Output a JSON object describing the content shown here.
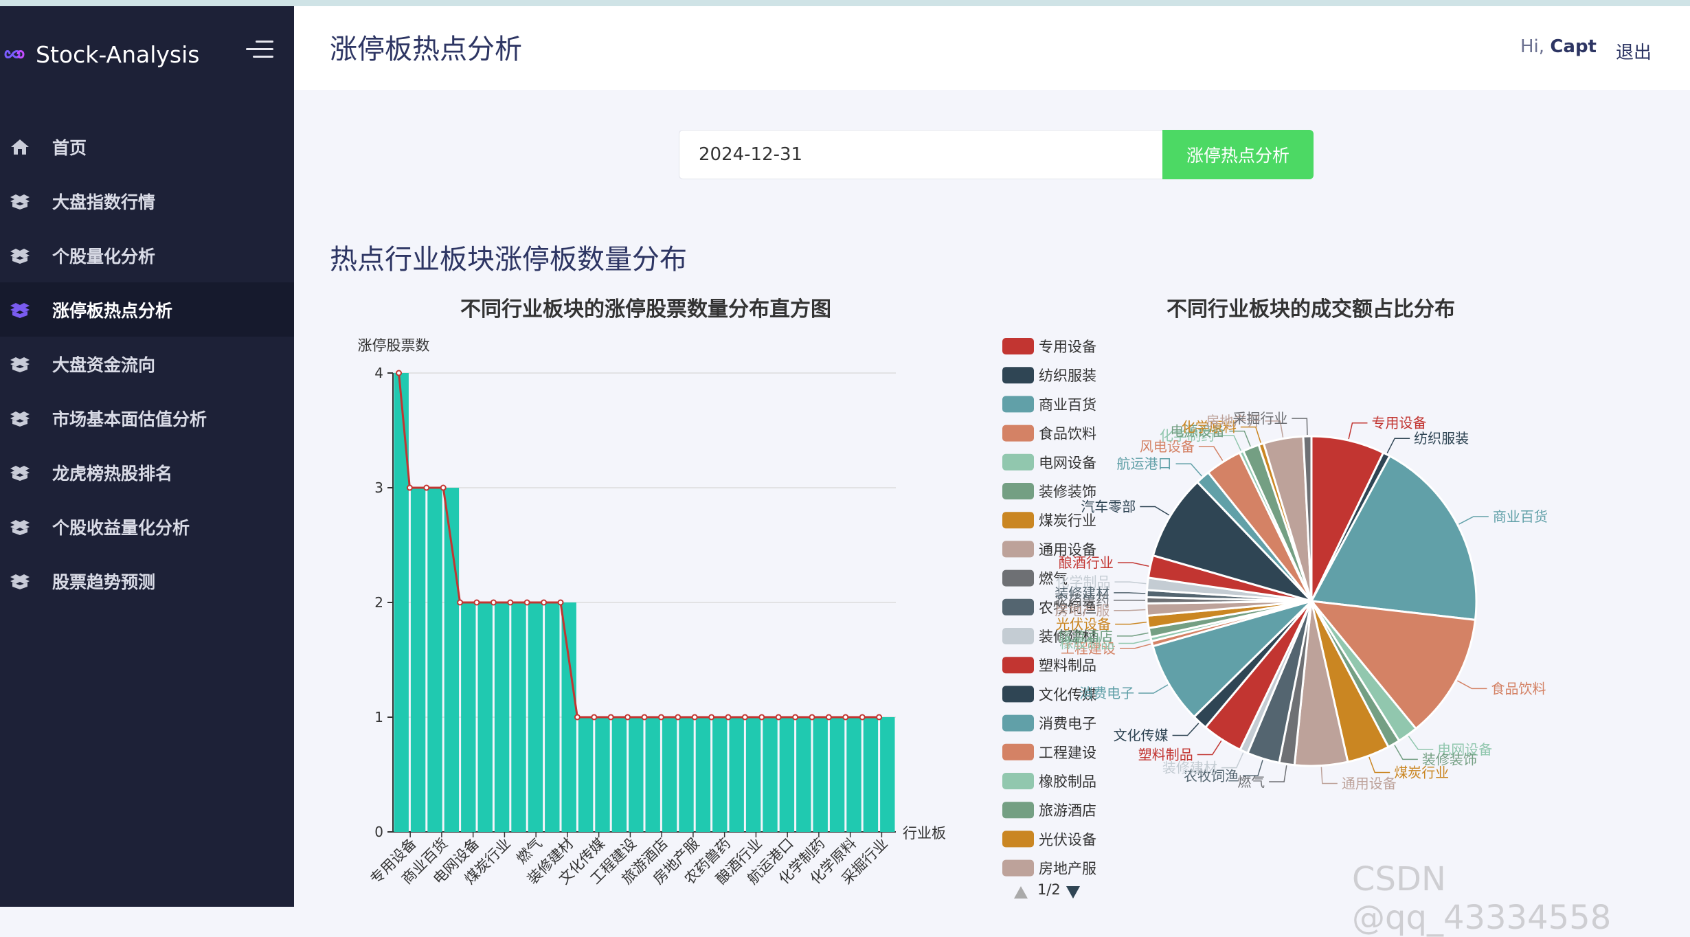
{
  "app": {
    "name": "Stock-Analysis"
  },
  "header": {
    "title": "涨停板热点分析",
    "greeting": "Hi,",
    "user": "Capt",
    "logout": "退出"
  },
  "nav": [
    {
      "label": "首页",
      "icon": "home-icon"
    },
    {
      "label": "大盘指数行情",
      "icon": "box-icon"
    },
    {
      "label": "个股量化分析",
      "icon": "box-icon"
    },
    {
      "label": "涨停板热点分析",
      "icon": "box-icon",
      "active": true
    },
    {
      "label": "大盘资金流向",
      "icon": "box-icon"
    },
    {
      "label": "市场基本面估值分析",
      "icon": "box-icon"
    },
    {
      "label": "龙虎榜热股排名",
      "icon": "box-icon"
    },
    {
      "label": "个股收益量化分析",
      "icon": "box-icon"
    },
    {
      "label": "股票趋势预测",
      "icon": "box-icon"
    }
  ],
  "search": {
    "date_value": "2024-12-31",
    "button_label": "涨停热点分析"
  },
  "section": {
    "title": "热点行业板块涨停板数量分布"
  },
  "watermark": "CSDN @qq_43334558",
  "colors": {
    "bar": "#20c9b0",
    "line": "#c23531",
    "button": "#4cd964",
    "sidebar": "#1d2137"
  },
  "chart_data": [
    {
      "type": "bar",
      "title": "不同行业板块的涨停股票数量分布直方图",
      "ylabel": "涨停股票数",
      "xlabel": "行业板",
      "ylim": [
        0,
        4
      ],
      "yticks": [
        0,
        1,
        2,
        3,
        4
      ],
      "categories": [
        "专用设备",
        "商业百货",
        "纺织服装",
        "电网设备",
        "装修装饰",
        "煤炭行业",
        "汽车零部",
        "燃气",
        "通用设备",
        "装修建材",
        "化学制品",
        "文化传媒",
        "塑料制品",
        "工程建设",
        "橡胶制品",
        "旅游酒店",
        "光伏设备",
        "房地产服",
        "农牧饲渔",
        "农药兽药",
        "消费电子",
        "酿酒行业",
        "电源设备",
        "航运港口",
        "风电设备",
        "化学制药",
        "化学原料",
        "房地产开",
        "采掘行业",
        "食品饮料"
      ],
      "tick_labels": [
        "专用设备",
        "商业百货",
        "电网设备",
        "煤炭行业",
        "燃气",
        "装修建材",
        "文化传媒",
        "工程建设",
        "旅游酒店",
        "房地产服",
        "农药兽药",
        "酿酒行业",
        "航运港口",
        "化学制药",
        "化学原料",
        "采掘行业"
      ],
      "series": [
        {
          "type": "bar",
          "values": [
            4,
            3,
            3,
            3,
            2,
            2,
            2,
            2,
            2,
            2,
            2,
            1,
            1,
            1,
            1,
            1,
            1,
            1,
            1,
            1,
            1,
            1,
            1,
            1,
            1,
            1,
            1,
            1,
            1,
            1
          ]
        },
        {
          "type": "line",
          "values": [
            4,
            3,
            3,
            3,
            2,
            2,
            2,
            2,
            2,
            2,
            2,
            1,
            1,
            1,
            1,
            1,
            1,
            1,
            1,
            1,
            1,
            1,
            1,
            1,
            1,
            1,
            1,
            1,
            1,
            1
          ]
        }
      ]
    },
    {
      "type": "pie",
      "title": "不同行业板块的成交额占比分布",
      "legend_page": "1/2",
      "legend": [
        {
          "name": "专用设备",
          "color": "#c23531"
        },
        {
          "name": "纺织服装",
          "color": "#2f4554"
        },
        {
          "name": "商业百货",
          "color": "#61a0a8"
        },
        {
          "name": "食品饮料",
          "color": "#d48265"
        },
        {
          "name": "电网设备",
          "color": "#91c7ae"
        },
        {
          "name": "装修装饰",
          "color": "#749f83"
        },
        {
          "name": "煤炭行业",
          "color": "#ca8622"
        },
        {
          "name": "通用设备",
          "color": "#bda29a"
        },
        {
          "name": "燃气",
          "color": "#6e7074"
        },
        {
          "name": "农牧饲渔",
          "color": "#546570"
        },
        {
          "name": "装修建材",
          "color": "#c4ccd3"
        },
        {
          "name": "塑料制品",
          "color": "#c23531"
        },
        {
          "name": "文化传媒",
          "color": "#2f4554"
        },
        {
          "name": "消费电子",
          "color": "#61a0a8"
        },
        {
          "name": "工程建设",
          "color": "#d48265"
        },
        {
          "name": "橡胶制品",
          "color": "#91c7ae"
        },
        {
          "name": "旅游酒店",
          "color": "#749f83"
        },
        {
          "name": "光伏设备",
          "color": "#ca8622"
        },
        {
          "name": "房地产服",
          "color": "#bda29a"
        }
      ],
      "slices": [
        {
          "name": "专用设备",
          "color": "#c23531",
          "value": 7.2
        },
        {
          "name": "纺织服装",
          "color": "#2f4554",
          "value": 0.7
        },
        {
          "name": "商业百货",
          "color": "#61a0a8",
          "value": 19.0
        },
        {
          "name": "食品饮料",
          "color": "#d48265",
          "value": 12.3
        },
        {
          "name": "电网设备",
          "color": "#91c7ae",
          "value": 2.0
        },
        {
          "name": "装修装饰",
          "color": "#749f83",
          "value": 1.2
        },
        {
          "name": "煤炭行业",
          "color": "#ca8622",
          "value": 4.2
        },
        {
          "name": "通用设备",
          "color": "#bda29a",
          "value": 5.2
        },
        {
          "name": "燃气",
          "color": "#6e7074",
          "value": 1.5
        },
        {
          "name": "农牧饲渔",
          "color": "#546570",
          "value": 3.2
        },
        {
          "name": "装修建材",
          "color": "#c4ccd3",
          "value": 0.8
        },
        {
          "name": "塑料制品",
          "color": "#c23531",
          "value": 4.0
        },
        {
          "name": "文化传媒",
          "color": "#2f4554",
          "value": 1.5
        },
        {
          "name": "消费电子",
          "color": "#61a0a8",
          "value": 8.0
        },
        {
          "name": "工程建设",
          "color": "#d48265",
          "value": 0.5
        },
        {
          "name": "橡胶制品",
          "color": "#91c7ae",
          "value": 0.4
        },
        {
          "name": "旅游酒店",
          "color": "#749f83",
          "value": 0.9
        },
        {
          "name": "光伏设备",
          "color": "#ca8622",
          "value": 1.2
        },
        {
          "name": "房地产服",
          "color": "#bda29a",
          "value": 1.2
        },
        {
          "name": "农药兽药",
          "color": "#6e7074",
          "value": 0.6
        },
        {
          "name": "装修建材",
          "color": "#546570",
          "value": 0.7
        },
        {
          "name": "化学制品",
          "color": "#c4ccd3",
          "value": 1.2
        },
        {
          "name": "酿酒行业",
          "color": "#c23531",
          "value": 2.2
        },
        {
          "name": "汽车零部",
          "color": "#2f4554",
          "value": 8.4
        },
        {
          "name": "航运港口",
          "color": "#61a0a8",
          "value": 1.4
        },
        {
          "name": "风电设备",
          "color": "#d48265",
          "value": 3.6
        },
        {
          "name": "化学制药",
          "color": "#91c7ae",
          "value": 0.4
        },
        {
          "name": "电源设备",
          "color": "#749f83",
          "value": 1.6
        },
        {
          "name": "化学原料",
          "color": "#ca8622",
          "value": 0.5
        },
        {
          "name": "房地产开",
          "color": "#bda29a",
          "value": 3.9
        },
        {
          "name": "采掘行业",
          "color": "#6e7074",
          "value": 0.8
        }
      ]
    }
  ]
}
